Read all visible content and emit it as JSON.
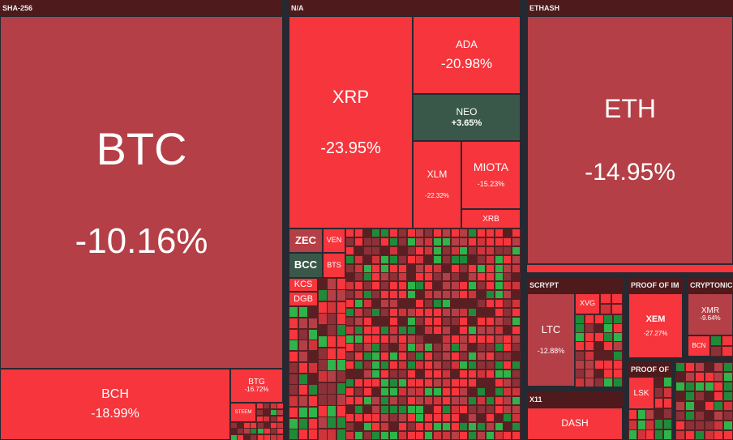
{
  "sectors": {
    "sha256": "SHA-256",
    "na": "N/A",
    "ethash": "ETHASH",
    "scrypt": "SCRYPT",
    "proof_of_im": "PROOF OF IM",
    "proof_of": "PROOF OF",
    "cryptonic": "CRYPTONIC",
    "x11": "X11"
  },
  "tiles": {
    "btc": {
      "ticker": "BTC",
      "change": "-10.16%"
    },
    "bch": {
      "ticker": "BCH",
      "change": "-18.99%"
    },
    "btg": {
      "ticker": "BTG",
      "change": "-16.72%"
    },
    "steem": {
      "ticker": "STEEM"
    },
    "xrp": {
      "ticker": "XRP",
      "change": "-23.95%"
    },
    "ada": {
      "ticker": "ADA",
      "change": "-20.98%"
    },
    "neo": {
      "ticker": "NEO",
      "change": "+3.65%"
    },
    "xlm": {
      "ticker": "XLM",
      "change": "-22.32%"
    },
    "miota": {
      "ticker": "MIOTA",
      "change": "-15.23%"
    },
    "xrb": {
      "ticker": "XRB"
    },
    "zec": {
      "ticker": "ZEC"
    },
    "ven": {
      "ticker": "VEN"
    },
    "bcc": {
      "ticker": "BCC"
    },
    "bts": {
      "ticker": "BTS"
    },
    "kcs": {
      "ticker": "KCS"
    },
    "dgb": {
      "ticker": "DGB"
    },
    "eth": {
      "ticker": "ETH",
      "change": "-14.95%"
    },
    "ltc": {
      "ticker": "LTC",
      "change": "-12.88%"
    },
    "xvg": {
      "ticker": "XVG"
    },
    "xem": {
      "ticker": "XEM",
      "change": "-27.27%"
    },
    "xmr": {
      "ticker": "XMR",
      "change": "-9.64%"
    },
    "bcn": {
      "ticker": "BCN"
    },
    "lsk": {
      "ticker": "LSK"
    },
    "dash": {
      "ticker": "DASH"
    }
  },
  "colors": {
    "strong_negative": "#f6353c",
    "mild_negative": "#b43f46",
    "dark_negative": "#8c3138",
    "positive": "#3a5849",
    "bright_positive": "#2fb34a",
    "background": "#262931"
  }
}
